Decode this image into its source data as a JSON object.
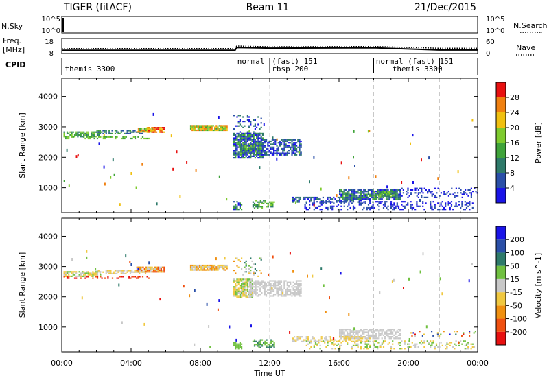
{
  "header": {
    "title": "TIGER (fitACF)",
    "beam": "Beam 11",
    "date": "21/Dec/2015"
  },
  "status_panels": {
    "nsky_label": "N.Sky",
    "nsearch_label": "N.Search",
    "noise_ticks": [
      "10^5",
      "10^0"
    ],
    "freq_label_1": "Freq.",
    "freq_label_2": "[MHz]",
    "freq_ticks": [
      "18",
      "8"
    ],
    "nave_label": "Nave",
    "nave_ticks": [
      "60",
      "0"
    ],
    "cpid_label": "CPID",
    "cpid_labels": [
      {
        "text": "themis 3300",
        "hour": 0.1,
        "row": 2
      },
      {
        "text": "normal",
        "hour": 10.05,
        "row": 1
      },
      {
        "text": "(fast) 151",
        "hour": 12.05,
        "row": 1
      },
      {
        "text": "rbsp 200",
        "hour": 12.05,
        "row": 2
      },
      {
        "text": "normal (fast) 151",
        "hour": 18.05,
        "row": 1
      },
      {
        "text": "themis 3300",
        "hour": 19.0,
        "row": 2
      }
    ],
    "cpid_boundaries": [
      10.0,
      12.0,
      18.0,
      21.8
    ],
    "freq_series": [
      [
        0,
        10.2
      ],
      [
        10,
        10.2
      ],
      [
        10.1,
        12.0
      ],
      [
        12,
        11.6
      ],
      [
        18,
        11.8
      ],
      [
        21.8,
        10.3
      ],
      [
        24,
        10.3
      ]
    ],
    "nave_series": [
      [
        0,
        20
      ],
      [
        10,
        20
      ],
      [
        10.1,
        30
      ],
      [
        12,
        27
      ],
      [
        18,
        28
      ],
      [
        21.8,
        21
      ],
      [
        24,
        21
      ]
    ]
  },
  "chart_data": [
    {
      "type": "heatmap",
      "title": "",
      "xlabel": "Time UT",
      "ylabel": "Slant Range [km]",
      "xlim": [
        0,
        24
      ],
      "ylim": [
        180,
        4600
      ],
      "x_ticks": [
        "00:00",
        "04:00",
        "08:00",
        "12:00",
        "16:00",
        "20:00",
        "00:00"
      ],
      "y_ticks": [
        1000,
        2000,
        3000,
        4000
      ],
      "colorbar_label": "Power [dB]",
      "colorbar_ticks": [
        4,
        8,
        12,
        16,
        20,
        24,
        28
      ],
      "colors": [
        "#1a14e8",
        "#2a4fa8",
        "#2e7a6a",
        "#3fa33a",
        "#7ecb2e",
        "#f0c010",
        "#f08010",
        "#e81010"
      ],
      "bands": [
        {
          "t0": 0.1,
          "t1": 2.2,
          "r0": 2700,
          "r1": 2850,
          "lvl": [
            2,
            4
          ],
          "density": 0.7
        },
        {
          "t0": 2.0,
          "t1": 4.8,
          "r0": 2800,
          "r1": 2900,
          "lvl": [
            1,
            3
          ],
          "density": 0.6
        },
        {
          "t0": 4.3,
          "t1": 5.2,
          "r0": 2830,
          "r1": 2960,
          "lvl": [
            3,
            6
          ],
          "density": 0.8
        },
        {
          "t0": 4.9,
          "t1": 5.9,
          "r0": 2850,
          "r1": 3000,
          "lvl": [
            5,
            7
          ],
          "density": 0.9
        },
        {
          "t0": 7.4,
          "t1": 9.5,
          "r0": 2870,
          "r1": 3060,
          "lvl": [
            3,
            6
          ],
          "density": 0.95
        },
        {
          "t0": 0.1,
          "t1": 5.0,
          "r0": 2630,
          "r1": 2690,
          "lvl": [
            3,
            4
          ],
          "density": 0.4
        },
        {
          "t0": 9.9,
          "t1": 11.6,
          "r0": 2000,
          "r1": 2800,
          "lvl": [
            0,
            3
          ],
          "density": 0.8
        },
        {
          "t0": 10.2,
          "t1": 11.5,
          "r0": 2150,
          "r1": 2450,
          "lvl": [
            1,
            4
          ],
          "density": 0.7
        },
        {
          "t0": 11.5,
          "t1": 13.8,
          "r0": 2100,
          "r1": 2600,
          "lvl": [
            0,
            2
          ],
          "density": 0.6
        },
        {
          "t0": 9.9,
          "t1": 11.5,
          "r0": 2800,
          "r1": 3400,
          "lvl": [
            0,
            2
          ],
          "density": 0.2
        },
        {
          "t0": 13.3,
          "t1": 18.0,
          "r0": 520,
          "r1": 700,
          "lvl": [
            0,
            2
          ],
          "density": 0.55
        },
        {
          "t0": 16.0,
          "t1": 19.5,
          "r0": 620,
          "r1": 950,
          "lvl": [
            0,
            3
          ],
          "density": 0.75
        },
        {
          "t0": 18.0,
          "t1": 19.3,
          "r0": 700,
          "r1": 880,
          "lvl": [
            2,
            4
          ],
          "density": 0.8
        },
        {
          "t0": 14.0,
          "t1": 23.8,
          "r0": 300,
          "r1": 560,
          "lvl": [
            0,
            1
          ],
          "density": 0.3
        },
        {
          "t0": 19.5,
          "t1": 24.0,
          "r0": 700,
          "r1": 1000,
          "lvl": [
            0,
            1
          ],
          "density": 0.25
        },
        {
          "t0": 9.9,
          "t1": 10.4,
          "r0": 300,
          "r1": 560,
          "lvl": [
            0,
            3
          ],
          "density": 0.6
        },
        {
          "t0": 11.0,
          "t1": 12.3,
          "r0": 350,
          "r1": 600,
          "lvl": [
            2,
            4
          ],
          "density": 0.5
        }
      ]
    },
    {
      "type": "heatmap",
      "title": "",
      "xlabel": "Time UT",
      "ylabel": "Slant Range [km]",
      "xlim": [
        0,
        24
      ],
      "ylim": [
        180,
        4600
      ],
      "x_ticks": [
        "00:00",
        "04:00",
        "08:00",
        "12:00",
        "16:00",
        "20:00",
        "00:00"
      ],
      "y_ticks": [
        1000,
        2000,
        3000,
        4000
      ],
      "colorbar_label": "Velocity [m s^-1]",
      "colorbar_ticks": [
        -200,
        -100,
        -50,
        -15,
        15,
        50,
        100,
        200
      ],
      "colors": [
        "#e81010",
        "#f05010",
        "#f09010",
        "#f0c840",
        "#c8c8c8",
        "#70c040",
        "#2e7a6a",
        "#2a4fa8",
        "#1a14e8"
      ],
      "bands": [
        {
          "t0": 0.1,
          "t1": 2.2,
          "r0": 2700,
          "r1": 2850,
          "lvl": [
            3,
            5
          ],
          "density": 0.7
        },
        {
          "t0": 2.0,
          "t1": 4.8,
          "r0": 2790,
          "r1": 2890,
          "lvl": [
            3,
            4
          ],
          "density": 0.6
        },
        {
          "t0": 4.3,
          "t1": 5.9,
          "r0": 2830,
          "r1": 3000,
          "lvl": [
            1,
            4
          ],
          "density": 0.85
        },
        {
          "t0": 7.4,
          "t1": 9.5,
          "r0": 2870,
          "r1": 3060,
          "lvl": [
            2,
            4
          ],
          "density": 0.9
        },
        {
          "t0": 0.1,
          "t1": 5.0,
          "r0": 2630,
          "r1": 2690,
          "lvl": [
            0,
            1
          ],
          "density": 0.4
        },
        {
          "t0": 9.9,
          "t1": 11.0,
          "r0": 2000,
          "r1": 2600,
          "lvl": [
            3,
            5
          ],
          "density": 0.8
        },
        {
          "t0": 10.8,
          "t1": 13.8,
          "r0": 2050,
          "r1": 2550,
          "lvl": [
            4,
            4
          ],
          "density": 0.6
        },
        {
          "t0": 9.9,
          "t1": 11.5,
          "r0": 2700,
          "r1": 3300,
          "lvl": [
            2,
            6
          ],
          "density": 0.2
        },
        {
          "t0": 16.0,
          "t1": 19.5,
          "r0": 620,
          "r1": 950,
          "lvl": [
            4,
            4
          ],
          "density": 0.7
        },
        {
          "t0": 13.3,
          "t1": 18.0,
          "r0": 520,
          "r1": 700,
          "lvl": [
            3,
            4
          ],
          "density": 0.5
        },
        {
          "t0": 20.0,
          "t1": 24.0,
          "r0": 700,
          "r1": 880,
          "lvl": [
            0,
            8
          ],
          "density": 0.2
        },
        {
          "t0": 14.0,
          "t1": 23.8,
          "r0": 300,
          "r1": 560,
          "lvl": [
            3,
            5
          ],
          "density": 0.25
        },
        {
          "t0": 9.9,
          "t1": 10.4,
          "r0": 300,
          "r1": 560,
          "lvl": [
            5,
            5
          ],
          "density": 0.6
        },
        {
          "t0": 11.0,
          "t1": 12.3,
          "r0": 350,
          "r1": 600,
          "lvl": [
            5,
            6
          ],
          "density": 0.5
        }
      ]
    }
  ]
}
